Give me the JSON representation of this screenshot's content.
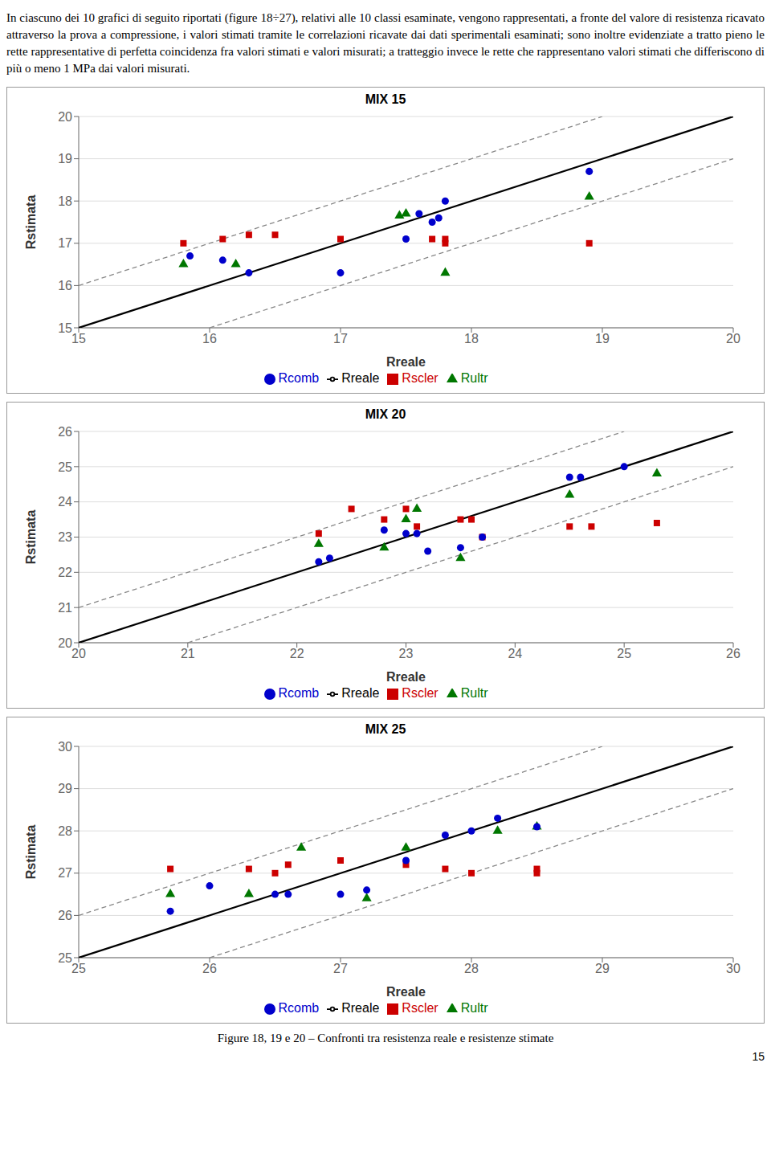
{
  "annotations": [
    "In ciascuno dei 10 grafici di seguito riportati (figure 18÷27), relativi alle 10 classi esaminate, vengono rappresentati, a fronte del valore di resistenza ricavato attraverso la prova a compressione, i valori stimati tramite le correlazioni ricavate dai dati sperimentali esaminati; sono inoltre evidenziate a tratto pieno le rette rappresentative di perfetta coincidenza fra valori stimati e valori misurati; a tratteggio invece le rette che rappresentano valori stimati che differiscono di più o meno 1 MPa dai valori misurati.",
    "Figure 18, 19 e 20 – Confronti tra resistenza reale e resistenze stimate",
    "15"
  ],
  "chart_data": [
    {
      "type": "scatter",
      "title": "MIX 15",
      "x_label": "Rreale",
      "y_label": "Rstimata",
      "xlim": [
        15,
        20
      ],
      "ylim": [
        15,
        20
      ],
      "xticks": [
        15,
        16,
        17,
        18,
        19,
        20
      ],
      "yticks": [
        15,
        16,
        17,
        18,
        19,
        20
      ],
      "grid": "y",
      "series": [
        {
          "name": "Rreale",
          "type": "line",
          "line_style": "solid",
          "color": "#000000",
          "values": [
            [
              15,
              15
            ],
            [
              20,
              20
            ]
          ]
        },
        {
          "type": "line",
          "line_style": "dashed",
          "color": "#888888",
          "values": [
            [
              15,
              16
            ],
            [
              19,
              20
            ]
          ]
        },
        {
          "type": "line",
          "line_style": "dashed",
          "color": "#888888",
          "values": [
            [
              16,
              15
            ],
            [
              20,
              19
            ]
          ]
        },
        {
          "name": "Rscler",
          "type": "scatter",
          "marker": "square",
          "color": "#CC0000",
          "values": [
            [
              15.8,
              17.0
            ],
            [
              16.1,
              17.1
            ],
            [
              16.3,
              17.2
            ],
            [
              16.5,
              17.2
            ],
            [
              17.0,
              17.1
            ],
            [
              17.7,
              17.1
            ],
            [
              17.8,
              17.1
            ],
            [
              17.8,
              17.0
            ],
            [
              18.9,
              17.0
            ]
          ]
        },
        {
          "name": "Rultr",
          "type": "scatter",
          "marker": "triangle",
          "color": "#007700",
          "values": [
            [
              15.8,
              16.5
            ],
            [
              16.2,
              16.5
            ],
            [
              17.45,
              17.65
            ],
            [
              17.5,
              17.7
            ],
            [
              17.8,
              16.3
            ],
            [
              18.9,
              18.1
            ]
          ]
        },
        {
          "name": "Rcomb",
          "type": "scatter",
          "marker": "circle",
          "color": "#0000CC",
          "values": [
            [
              15.85,
              16.7
            ],
            [
              16.1,
              16.6
            ],
            [
              16.3,
              16.3
            ],
            [
              17.0,
              16.3
            ],
            [
              17.5,
              17.1
            ],
            [
              17.6,
              17.7
            ],
            [
              17.7,
              17.5
            ],
            [
              17.75,
              17.6
            ],
            [
              17.8,
              18.0
            ],
            [
              18.9,
              18.7
            ]
          ]
        }
      ]
    },
    {
      "type": "scatter",
      "title": "MIX 20",
      "x_label": "Rreale",
      "y_label": "Rstimata",
      "xlim": [
        20,
        26
      ],
      "ylim": [
        20,
        26
      ],
      "xticks": [
        20,
        21,
        22,
        23,
        24,
        25,
        26
      ],
      "yticks": [
        20,
        21,
        22,
        23,
        24,
        25,
        26
      ],
      "grid": "y",
      "series": [
        {
          "name": "Rreale",
          "type": "line",
          "line_style": "solid",
          "color": "#000000",
          "values": [
            [
              20,
              20
            ],
            [
              26,
              26
            ]
          ]
        },
        {
          "type": "line",
          "line_style": "dashed",
          "color": "#888888",
          "values": [
            [
              20,
              21
            ],
            [
              25,
              26
            ]
          ]
        },
        {
          "type": "line",
          "line_style": "dashed",
          "color": "#888888",
          "values": [
            [
              21,
              20
            ],
            [
              26,
              25
            ]
          ]
        },
        {
          "name": "Rscler",
          "type": "scatter",
          "marker": "square",
          "color": "#CC0000",
          "values": [
            [
              22.2,
              23.1
            ],
            [
              22.5,
              23.8
            ],
            [
              22.8,
              23.5
            ],
            [
              23.0,
              23.8
            ],
            [
              23.1,
              23.3
            ],
            [
              23.5,
              23.5
            ],
            [
              23.6,
              23.5
            ],
            [
              23.7,
              23.0
            ],
            [
              24.5,
              23.3
            ],
            [
              24.7,
              23.3
            ],
            [
              25.3,
              23.4
            ]
          ]
        },
        {
          "name": "Rultr",
          "type": "scatter",
          "marker": "triangle",
          "color": "#007700",
          "values": [
            [
              22.2,
              22.8
            ],
            [
              22.8,
              22.7
            ],
            [
              23.0,
              23.5
            ],
            [
              23.1,
              23.8
            ],
            [
              23.5,
              22.4
            ],
            [
              24.5,
              24.2
            ],
            [
              25.3,
              24.8
            ]
          ]
        },
        {
          "name": "Rcomb",
          "type": "scatter",
          "marker": "circle",
          "color": "#0000CC",
          "values": [
            [
              22.2,
              22.3
            ],
            [
              22.3,
              22.4
            ],
            [
              22.8,
              23.2
            ],
            [
              23.0,
              23.1
            ],
            [
              23.1,
              23.1
            ],
            [
              23.2,
              22.6
            ],
            [
              23.5,
              22.7
            ],
            [
              23.7,
              23.0
            ],
            [
              24.5,
              24.7
            ],
            [
              24.6,
              24.7
            ],
            [
              25.0,
              25.0
            ]
          ]
        }
      ]
    },
    {
      "type": "scatter",
      "title": "MIX 25",
      "x_label": "Rreale",
      "y_label": "Rstimata",
      "xlim": [
        25,
        30
      ],
      "ylim": [
        25,
        30
      ],
      "xticks": [
        25,
        26,
        27,
        28,
        29,
        30
      ],
      "yticks": [
        25,
        26,
        27,
        28,
        29,
        30
      ],
      "grid": "y",
      "series": [
        {
          "name": "Rreale",
          "type": "line",
          "line_style": "solid",
          "color": "#000000",
          "values": [
            [
              25,
              25
            ],
            [
              30,
              30
            ]
          ]
        },
        {
          "type": "line",
          "line_style": "dashed",
          "color": "#888888",
          "values": [
            [
              25,
              26
            ],
            [
              29,
              30
            ]
          ]
        },
        {
          "type": "line",
          "line_style": "dashed",
          "color": "#888888",
          "values": [
            [
              26,
              25
            ],
            [
              30,
              29
            ]
          ]
        },
        {
          "name": "Rscler",
          "type": "scatter",
          "marker": "square",
          "color": "#CC0000",
          "values": [
            [
              25.7,
              27.1
            ],
            [
              26.3,
              27.1
            ],
            [
              26.5,
              27.0
            ],
            [
              26.6,
              27.2
            ],
            [
              27.0,
              27.3
            ],
            [
              27.5,
              27.2
            ],
            [
              27.8,
              27.1
            ],
            [
              28.0,
              27.0
            ],
            [
              28.5,
              27.0
            ],
            [
              28.5,
              27.1
            ]
          ]
        },
        {
          "name": "Rultr",
          "type": "scatter",
          "marker": "triangle",
          "color": "#007700",
          "values": [
            [
              25.7,
              26.5
            ],
            [
              26.3,
              26.5
            ],
            [
              26.7,
              27.6
            ],
            [
              27.2,
              26.4
            ],
            [
              27.5,
              27.6
            ],
            [
              28.2,
              28.0
            ],
            [
              28.5,
              28.1
            ]
          ]
        },
        {
          "name": "Rcomb",
          "type": "scatter",
          "marker": "circle",
          "color": "#0000CC",
          "values": [
            [
              25.7,
              26.1
            ],
            [
              26.0,
              26.7
            ],
            [
              26.5,
              26.5
            ],
            [
              26.6,
              26.5
            ],
            [
              27.0,
              26.5
            ],
            [
              27.2,
              26.6
            ],
            [
              27.5,
              27.3
            ],
            [
              27.8,
              27.9
            ],
            [
              28.0,
              28.0
            ],
            [
              28.2,
              28.3
            ],
            [
              28.5,
              28.1
            ]
          ]
        }
      ]
    }
  ]
}
